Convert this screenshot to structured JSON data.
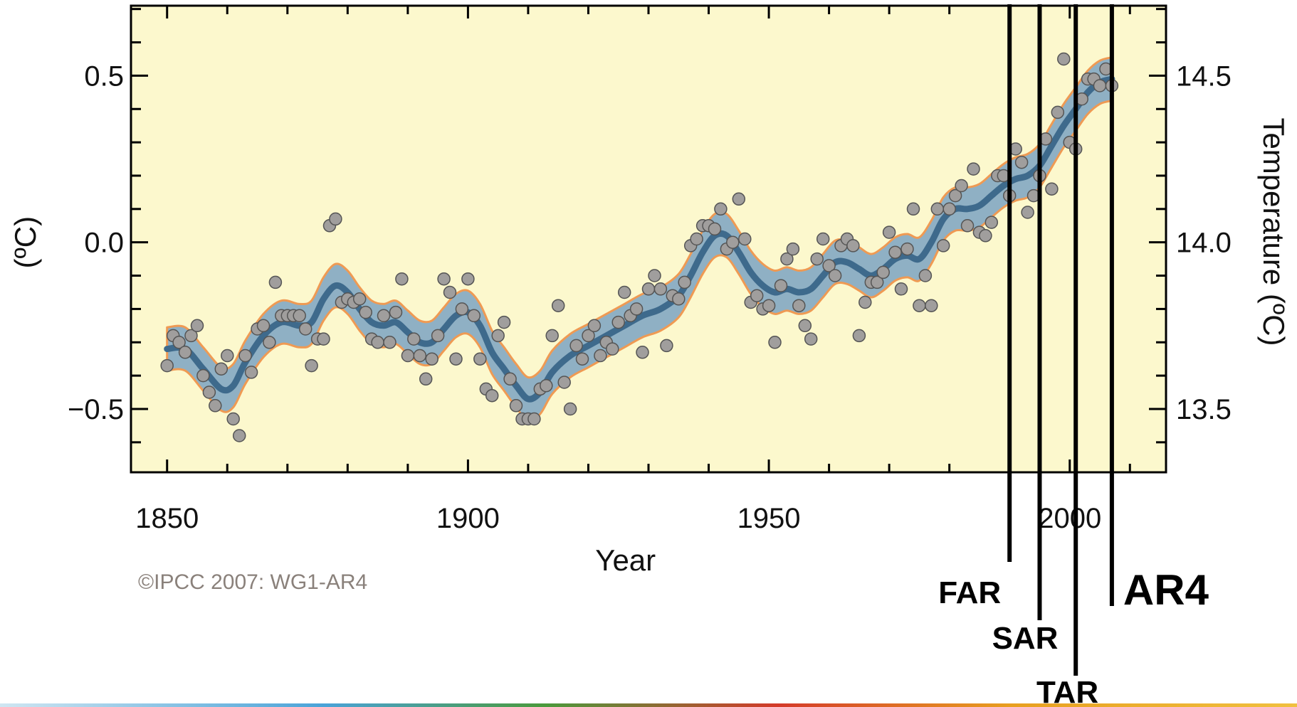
{
  "chart_data": {
    "type": "line",
    "xlabel": "Year",
    "ylabel": "(ºC)",
    "ylabel_right": "Temperature (ºC)",
    "xlim": [
      1844,
      2016
    ],
    "ylim": [
      -0.69,
      0.71
    ],
    "x_ticks": [
      1850,
      1900,
      1950,
      2000
    ],
    "y_ticks": [
      -0.5,
      0.0,
      0.5
    ],
    "y_tick_labels": [
      "−0.5",
      "0.0",
      "0.5"
    ],
    "y_right_ticks": [
      13.5,
      14.0,
      14.5
    ],
    "y_right_tick_labels": [
      "13.5",
      "14.0",
      "14.5"
    ],
    "y_right_offset": 14.0,
    "grid": false,
    "credit": "©IPCC  2007: WG1-AR4",
    "colors": {
      "plot_background": "#fcf8cd",
      "band_fill": "#8fb0c4",
      "band_edge": "#ef9a53",
      "smooth_line": "#3e6a8c",
      "points_fill": "#a09e9d",
      "points_edge": "#555555",
      "report_lines": "#000000"
    },
    "annual_anomalies": [
      {
        "x": 1850,
        "y": -0.37
      },
      {
        "x": 1851,
        "y": -0.28
      },
      {
        "x": 1852,
        "y": -0.3
      },
      {
        "x": 1853,
        "y": -0.33
      },
      {
        "x": 1854,
        "y": -0.28
      },
      {
        "x": 1855,
        "y": -0.25
      },
      {
        "x": 1856,
        "y": -0.4
      },
      {
        "x": 1857,
        "y": -0.45
      },
      {
        "x": 1858,
        "y": -0.49
      },
      {
        "x": 1859,
        "y": -0.38
      },
      {
        "x": 1860,
        "y": -0.34
      },
      {
        "x": 1861,
        "y": -0.53
      },
      {
        "x": 1862,
        "y": -0.58
      },
      {
        "x": 1863,
        "y": -0.34
      },
      {
        "x": 1864,
        "y": -0.39
      },
      {
        "x": 1865,
        "y": -0.26
      },
      {
        "x": 1866,
        "y": -0.25
      },
      {
        "x": 1867,
        "y": -0.3
      },
      {
        "x": 1868,
        "y": -0.12
      },
      {
        "x": 1869,
        "y": -0.22
      },
      {
        "x": 1870,
        "y": -0.22
      },
      {
        "x": 1871,
        "y": -0.22
      },
      {
        "x": 1872,
        "y": -0.22
      },
      {
        "x": 1873,
        "y": -0.26
      },
      {
        "x": 1874,
        "y": -0.37
      },
      {
        "x": 1875,
        "y": -0.29
      },
      {
        "x": 1876,
        "y": -0.29
      },
      {
        "x": 1877,
        "y": 0.05
      },
      {
        "x": 1878,
        "y": 0.07
      },
      {
        "x": 1879,
        "y": -0.18
      },
      {
        "x": 1880,
        "y": -0.17
      },
      {
        "x": 1881,
        "y": -0.18
      },
      {
        "x": 1882,
        "y": -0.17
      },
      {
        "x": 1883,
        "y": -0.21
      },
      {
        "x": 1884,
        "y": -0.29
      },
      {
        "x": 1885,
        "y": -0.3
      },
      {
        "x": 1886,
        "y": -0.22
      },
      {
        "x": 1887,
        "y": -0.3
      },
      {
        "x": 1888,
        "y": -0.21
      },
      {
        "x": 1889,
        "y": -0.11
      },
      {
        "x": 1890,
        "y": -0.34
      },
      {
        "x": 1891,
        "y": -0.29
      },
      {
        "x": 1892,
        "y": -0.34
      },
      {
        "x": 1893,
        "y": -0.41
      },
      {
        "x": 1894,
        "y": -0.35
      },
      {
        "x": 1895,
        "y": -0.28
      },
      {
        "x": 1896,
        "y": -0.11
      },
      {
        "x": 1897,
        "y": -0.15
      },
      {
        "x": 1898,
        "y": -0.35
      },
      {
        "x": 1899,
        "y": -0.2
      },
      {
        "x": 1900,
        "y": -0.11
      },
      {
        "x": 1901,
        "y": -0.22
      },
      {
        "x": 1902,
        "y": -0.35
      },
      {
        "x": 1903,
        "y": -0.44
      },
      {
        "x": 1904,
        "y": -0.46
      },
      {
        "x": 1905,
        "y": -0.28
      },
      {
        "x": 1906,
        "y": -0.24
      },
      {
        "x": 1907,
        "y": -0.41
      },
      {
        "x": 1908,
        "y": -0.49
      },
      {
        "x": 1909,
        "y": -0.53
      },
      {
        "x": 1910,
        "y": -0.53
      },
      {
        "x": 1911,
        "y": -0.53
      },
      {
        "x": 1912,
        "y": -0.44
      },
      {
        "x": 1913,
        "y": -0.43
      },
      {
        "x": 1914,
        "y": -0.28
      },
      {
        "x": 1915,
        "y": -0.19
      },
      {
        "x": 1916,
        "y": -0.42
      },
      {
        "x": 1917,
        "y": -0.5
      },
      {
        "x": 1918,
        "y": -0.31
      },
      {
        "x": 1919,
        "y": -0.35
      },
      {
        "x": 1920,
        "y": -0.28
      },
      {
        "x": 1921,
        "y": -0.25
      },
      {
        "x": 1922,
        "y": -0.34
      },
      {
        "x": 1923,
        "y": -0.3
      },
      {
        "x": 1924,
        "y": -0.32
      },
      {
        "x": 1925,
        "y": -0.24
      },
      {
        "x": 1926,
        "y": -0.15
      },
      {
        "x": 1927,
        "y": -0.22
      },
      {
        "x": 1928,
        "y": -0.2
      },
      {
        "x": 1929,
        "y": -0.33
      },
      {
        "x": 1930,
        "y": -0.14
      },
      {
        "x": 1931,
        "y": -0.1
      },
      {
        "x": 1932,
        "y": -0.14
      },
      {
        "x": 1933,
        "y": -0.31
      },
      {
        "x": 1934,
        "y": -0.16
      },
      {
        "x": 1935,
        "y": -0.17
      },
      {
        "x": 1936,
        "y": -0.12
      },
      {
        "x": 1937,
        "y": -0.01
      },
      {
        "x": 1938,
        "y": 0.01
      },
      {
        "x": 1939,
        "y": 0.05
      },
      {
        "x": 1940,
        "y": 0.05
      },
      {
        "x": 1941,
        "y": 0.04
      },
      {
        "x": 1942,
        "y": 0.1
      },
      {
        "x": 1943,
        "y": -0.02
      },
      {
        "x": 1944,
        "y": 0.0
      },
      {
        "x": 1945,
        "y": 0.13
      },
      {
        "x": 1946,
        "y": 0.01
      },
      {
        "x": 1947,
        "y": -0.18
      },
      {
        "x": 1948,
        "y": -0.16
      },
      {
        "x": 1949,
        "y": -0.2
      },
      {
        "x": 1950,
        "y": -0.19
      },
      {
        "x": 1951,
        "y": -0.3
      },
      {
        "x": 1952,
        "y": -0.13
      },
      {
        "x": 1953,
        "y": -0.05
      },
      {
        "x": 1954,
        "y": -0.02
      },
      {
        "x": 1955,
        "y": -0.19
      },
      {
        "x": 1956,
        "y": -0.25
      },
      {
        "x": 1957,
        "y": -0.29
      },
      {
        "x": 1958,
        "y": -0.05
      },
      {
        "x": 1959,
        "y": 0.01
      },
      {
        "x": 1960,
        "y": -0.07
      },
      {
        "x": 1961,
        "y": -0.1
      },
      {
        "x": 1962,
        "y": -0.01
      },
      {
        "x": 1963,
        "y": 0.01
      },
      {
        "x": 1964,
        "y": -0.01
      },
      {
        "x": 1965,
        "y": -0.28
      },
      {
        "x": 1966,
        "y": -0.18
      },
      {
        "x": 1967,
        "y": -0.12
      },
      {
        "x": 1968,
        "y": -0.12
      },
      {
        "x": 1969,
        "y": -0.09
      },
      {
        "x": 1970,
        "y": 0.03
      },
      {
        "x": 1971,
        "y": -0.03
      },
      {
        "x": 1972,
        "y": -0.14
      },
      {
        "x": 1973,
        "y": -0.02
      },
      {
        "x": 1974,
        "y": 0.1
      },
      {
        "x": 1975,
        "y": -0.19
      },
      {
        "x": 1976,
        "y": -0.1
      },
      {
        "x": 1977,
        "y": -0.19
      },
      {
        "x": 1978,
        "y": 0.1
      },
      {
        "x": 1979,
        "y": -0.01
      },
      {
        "x": 1980,
        "y": 0.1
      },
      {
        "x": 1981,
        "y": 0.14
      },
      {
        "x": 1982,
        "y": 0.17
      },
      {
        "x": 1983,
        "y": 0.05
      },
      {
        "x": 1984,
        "y": 0.22
      },
      {
        "x": 1985,
        "y": 0.03
      },
      {
        "x": 1986,
        "y": 0.02
      },
      {
        "x": 1987,
        "y": 0.06
      },
      {
        "x": 1988,
        "y": 0.2
      },
      {
        "x": 1989,
        "y": 0.2
      },
      {
        "x": 1990,
        "y": 0.14
      },
      {
        "x": 1991,
        "y": 0.28
      },
      {
        "x": 1992,
        "y": 0.24
      },
      {
        "x": 1993,
        "y": 0.09
      },
      {
        "x": 1994,
        "y": 0.14
      },
      {
        "x": 1995,
        "y": 0.2
      },
      {
        "x": 1996,
        "y": 0.31
      },
      {
        "x": 1997,
        "y": 0.16
      },
      {
        "x": 1998,
        "y": 0.39
      },
      {
        "x": 1999,
        "y": 0.55
      },
      {
        "x": 2000,
        "y": 0.3
      },
      {
        "x": 2001,
        "y": 0.28
      },
      {
        "x": 2002,
        "y": 0.43
      },
      {
        "x": 2003,
        "y": 0.49
      },
      {
        "x": 2004,
        "y": 0.49
      },
      {
        "x": 2005,
        "y": 0.47
      },
      {
        "x": 2006,
        "y": 0.52
      },
      {
        "x": 2007,
        "y": 0.47
      }
    ],
    "smoothed_curve": [
      {
        "x": 1850,
        "y": -0.32
      },
      {
        "x": 1853,
        "y": -0.32
      },
      {
        "x": 1856,
        "y": -0.38
      },
      {
        "x": 1859,
        "y": -0.44
      },
      {
        "x": 1861,
        "y": -0.43
      },
      {
        "x": 1863,
        "y": -0.36
      },
      {
        "x": 1866,
        "y": -0.28
      },
      {
        "x": 1869,
        "y": -0.24
      },
      {
        "x": 1872,
        "y": -0.25
      },
      {
        "x": 1874,
        "y": -0.24
      },
      {
        "x": 1876,
        "y": -0.17
      },
      {
        "x": 1878,
        "y": -0.13
      },
      {
        "x": 1880,
        "y": -0.15
      },
      {
        "x": 1882,
        "y": -0.2
      },
      {
        "x": 1884,
        "y": -0.24
      },
      {
        "x": 1886,
        "y": -0.25
      },
      {
        "x": 1888,
        "y": -0.24
      },
      {
        "x": 1890,
        "y": -0.27
      },
      {
        "x": 1892,
        "y": -0.3
      },
      {
        "x": 1894,
        "y": -0.3
      },
      {
        "x": 1896,
        "y": -0.26
      },
      {
        "x": 1898,
        "y": -0.22
      },
      {
        "x": 1900,
        "y": -0.21
      },
      {
        "x": 1902,
        "y": -0.25
      },
      {
        "x": 1904,
        "y": -0.33
      },
      {
        "x": 1906,
        "y": -0.38
      },
      {
        "x": 1908,
        "y": -0.43
      },
      {
        "x": 1910,
        "y": -0.47
      },
      {
        "x": 1912,
        "y": -0.45
      },
      {
        "x": 1914,
        "y": -0.39
      },
      {
        "x": 1917,
        "y": -0.34
      },
      {
        "x": 1920,
        "y": -0.31
      },
      {
        "x": 1923,
        "y": -0.28
      },
      {
        "x": 1926,
        "y": -0.25
      },
      {
        "x": 1929,
        "y": -0.22
      },
      {
        "x": 1932,
        "y": -0.2
      },
      {
        "x": 1935,
        "y": -0.16
      },
      {
        "x": 1937,
        "y": -0.1
      },
      {
        "x": 1939,
        "y": -0.03
      },
      {
        "x": 1941,
        "y": 0.02
      },
      {
        "x": 1943,
        "y": 0.02
      },
      {
        "x": 1945,
        "y": -0.03
      },
      {
        "x": 1947,
        "y": -0.09
      },
      {
        "x": 1949,
        "y": -0.13
      },
      {
        "x": 1951,
        "y": -0.15
      },
      {
        "x": 1953,
        "y": -0.14
      },
      {
        "x": 1955,
        "y": -0.15
      },
      {
        "x": 1957,
        "y": -0.14
      },
      {
        "x": 1959,
        "y": -0.1
      },
      {
        "x": 1961,
        "y": -0.06
      },
      {
        "x": 1963,
        "y": -0.06
      },
      {
        "x": 1965,
        "y": -0.08
      },
      {
        "x": 1967,
        "y": -0.1
      },
      {
        "x": 1969,
        "y": -0.08
      },
      {
        "x": 1971,
        "y": -0.05
      },
      {
        "x": 1973,
        "y": -0.04
      },
      {
        "x": 1975,
        "y": -0.05
      },
      {
        "x": 1977,
        "y": 0.0
      },
      {
        "x": 1979,
        "y": 0.07
      },
      {
        "x": 1981,
        "y": 0.1
      },
      {
        "x": 1983,
        "y": 0.1
      },
      {
        "x": 1985,
        "y": 0.11
      },
      {
        "x": 1987,
        "y": 0.14
      },
      {
        "x": 1989,
        "y": 0.17
      },
      {
        "x": 1991,
        "y": 0.19
      },
      {
        "x": 1993,
        "y": 0.2
      },
      {
        "x": 1995,
        "y": 0.23
      },
      {
        "x": 1997,
        "y": 0.29
      },
      {
        "x": 1999,
        "y": 0.35
      },
      {
        "x": 2001,
        "y": 0.4
      },
      {
        "x": 2003,
        "y": 0.45
      },
      {
        "x": 2005,
        "y": 0.48
      },
      {
        "x": 2007,
        "y": 0.49
      }
    ],
    "uncertainty_halfwidth": 0.065,
    "reports": [
      {
        "name": "FAR",
        "year": 1990
      },
      {
        "name": "SAR",
        "year": 1995
      },
      {
        "name": "TAR",
        "year": 2001
      },
      {
        "name": "AR4",
        "year": 2007
      }
    ]
  }
}
